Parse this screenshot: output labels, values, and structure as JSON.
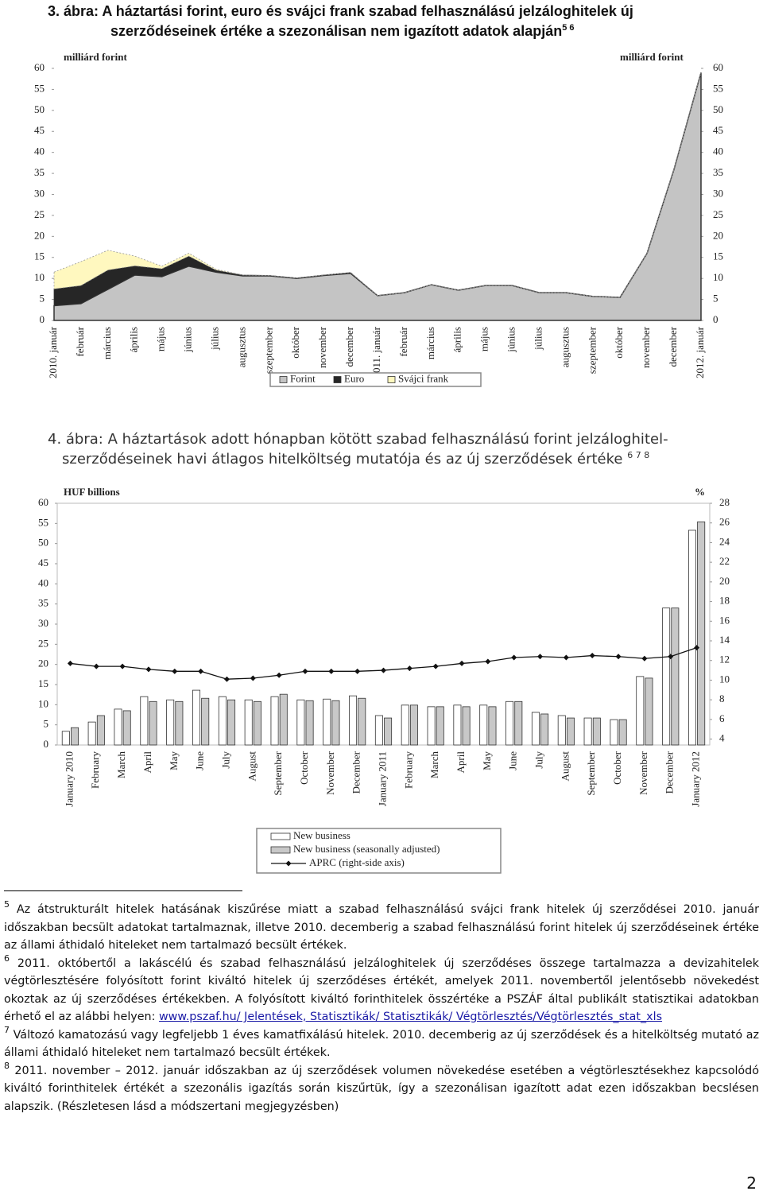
{
  "chart_data": [
    {
      "type": "area",
      "stacked": true,
      "title": "3. ábra: A háztartási forint, euro és svájci frank szabad felhasználású jelzáloghitelek új szerződéseinek értéke a szezonálisan nem igazított adatok alapján",
      "title_refs": "5 6",
      "y_label": "milliárd forint",
      "y2_label": "milliárd forint",
      "categories": [
        "2010. január",
        "február",
        "március",
        "április",
        "május",
        "június",
        "július",
        "augusztus",
        "szeptember",
        "október",
        "november",
        "december",
        "2011. január",
        "február",
        "március",
        "április",
        "május",
        "június",
        "július",
        "augusztus",
        "szeptember",
        "október",
        "november",
        "december",
        "2012. január"
      ],
      "series": [
        {
          "name": "Forint",
          "color": "#c4c4c4",
          "values": [
            3.5,
            4,
            7.4,
            10.8,
            10.4,
            12.9,
            11.5,
            10.6,
            10.6,
            10,
            10.7,
            11.2,
            5.9,
            6.6,
            8.5,
            7.2,
            8.3,
            8.3,
            6.6,
            6.6,
            5.7,
            5.5,
            16,
            36,
            59
          ]
        },
        {
          "name": "Euro",
          "color": "#262626",
          "values": [
            4,
            4.3,
            4.6,
            2.2,
            1.9,
            2.4,
            0.5,
            0.2,
            0.1,
            0.1,
            0.1,
            0.2,
            0,
            0,
            0,
            0,
            0,
            0,
            0,
            0,
            0,
            0,
            0,
            0,
            0
          ]
        },
        {
          "name": "Svájci frank",
          "color": "#fff8bf",
          "values": [
            4,
            5.7,
            4.7,
            2.3,
            0.6,
            0.7,
            0.2,
            0,
            0,
            0,
            0,
            0,
            0,
            0,
            0,
            0,
            0,
            0,
            0,
            0,
            0,
            0,
            0,
            0,
            0
          ]
        }
      ],
      "ylim": [
        0,
        60
      ],
      "yticks": [
        0,
        5,
        10,
        15,
        20,
        25,
        30,
        35,
        40,
        45,
        50,
        55,
        60
      ],
      "y2lim": [
        0,
        60
      ],
      "y2ticks": [
        0,
        5,
        10,
        15,
        20,
        25,
        30,
        35,
        40,
        45,
        50,
        55,
        60
      ],
      "grid": false,
      "legend": "bottom"
    },
    {
      "type": "bar",
      "title": "4. ábra: A háztartások adott hónapban kötött szabad felhasználású forint jelzáloghitel-szerződéseinek havi átlagos hitelköltség mutatója és az új szerződések értéke",
      "title_refs": "6 7 8",
      "y_label": "HUF billions",
      "y2_label": "%",
      "categories": [
        "January 2010",
        "February",
        "March",
        "April",
        "May",
        "June",
        "July",
        "August",
        "September",
        "October",
        "November",
        "December",
        "January 2011",
        "February",
        "March",
        "April",
        "May",
        "June",
        "July",
        "August",
        "September",
        "October",
        "November",
        "December",
        "January 2012"
      ],
      "series": [
        {
          "name": "New business",
          "color": "#ffffff",
          "values": [
            3.4,
            5.7,
            8.9,
            12,
            11.2,
            13.6,
            12,
            11.2,
            12,
            11.2,
            11.4,
            12.2,
            7.3,
            9.9,
            9.5,
            9.9,
            9.9,
            10.8,
            8.1,
            7.3,
            6.7,
            6.3,
            17,
            34,
            53.3
          ]
        },
        {
          "name": "New business (seasonally adjusted)",
          "color": "#c8c8c8",
          "values": [
            4.3,
            7.3,
            8.5,
            10.8,
            10.8,
            11.6,
            11.2,
            10.8,
            12.6,
            11,
            11,
            11.6,
            6.7,
            9.9,
            9.5,
            9.5,
            9.5,
            10.8,
            7.7,
            6.7,
            6.7,
            6.3,
            16.6,
            34,
            55.4
          ]
        },
        {
          "name": "APRC (right-side axis)",
          "color": "#111111",
          "type": "line",
          "axis": "y2",
          "values": [
            11.7,
            11.4,
            11.4,
            11.1,
            10.9,
            10.9,
            10.1,
            10.2,
            10.5,
            10.9,
            10.9,
            10.9,
            11,
            11.2,
            11.4,
            11.7,
            11.9,
            12.3,
            12.4,
            12.3,
            12.5,
            12.4,
            12.2,
            12.4,
            13.3
          ]
        }
      ],
      "ylim": [
        0,
        60
      ],
      "yticks": [
        0,
        5,
        10,
        15,
        20,
        25,
        30,
        35,
        40,
        45,
        50,
        55,
        60
      ],
      "y2lim": [
        3.4,
        28
      ],
      "y2ticks": [
        4,
        6,
        8,
        10,
        12,
        14,
        16,
        18,
        20,
        22,
        24,
        26,
        28
      ],
      "grid": false,
      "legend": "bottom"
    }
  ],
  "footnotes": [
    {
      "number": "5",
      "text": "Az átstrukturált hitelek hatásának kiszűrése miatt a szabad felhasználású svájci frank hitelek új szerződései 2010. január időszakban becsült adatokat tartalmaznak, illetve 2010. decemberig a szabad felhasználású forint hitelek új szerződéseinek értéke az állami áthidaló hiteleket nem tartalmazó becsült értékek."
    },
    {
      "number": "6",
      "text": "2011. októbertől a lakáscélú és szabad felhasználású jelzáloghitelek új szerződéses összege tartalmazza a devizahitelek végtörlesztésére folyósított forint kiváltó hitelek új szerződéses értékét, amelyek 2011. novembertől jelentősebb növekedést okoztak az új szerződéses értékekben. A folyósított kiváltó forinthitelek összértéke a PSZÁF által publikált statisztikai adatokban érhető el az alábbi helyen: ",
      "link": "www.pszaf.hu/ Jelentések, Statisztikák/ Statisztikák/ Végtörlesztés/Végtörlesztés_stat_xls"
    },
    {
      "number": "7",
      "text": "Változó kamatozású vagy legfeljebb 1 éves kamatfixálású hitelek. 2010. decemberig az új szerződések és a hitelköltség mutató az állami áthidaló hiteleket nem tartalmazó becsült értékek."
    },
    {
      "number": "8",
      "text": "2011. november – 2012. január időszakban az új szerződések volumen növekedése esetében a végtörlesztésekhez kapcsolódó kiváltó forinthitelek értékét a szezonális igazítás során kiszűrtük, így a szezonálisan igazított adat ezen időszakban becslésen alapszik. (Részletesen lásd a módszertani megjegyzésben)"
    }
  ],
  "page_number": "2"
}
